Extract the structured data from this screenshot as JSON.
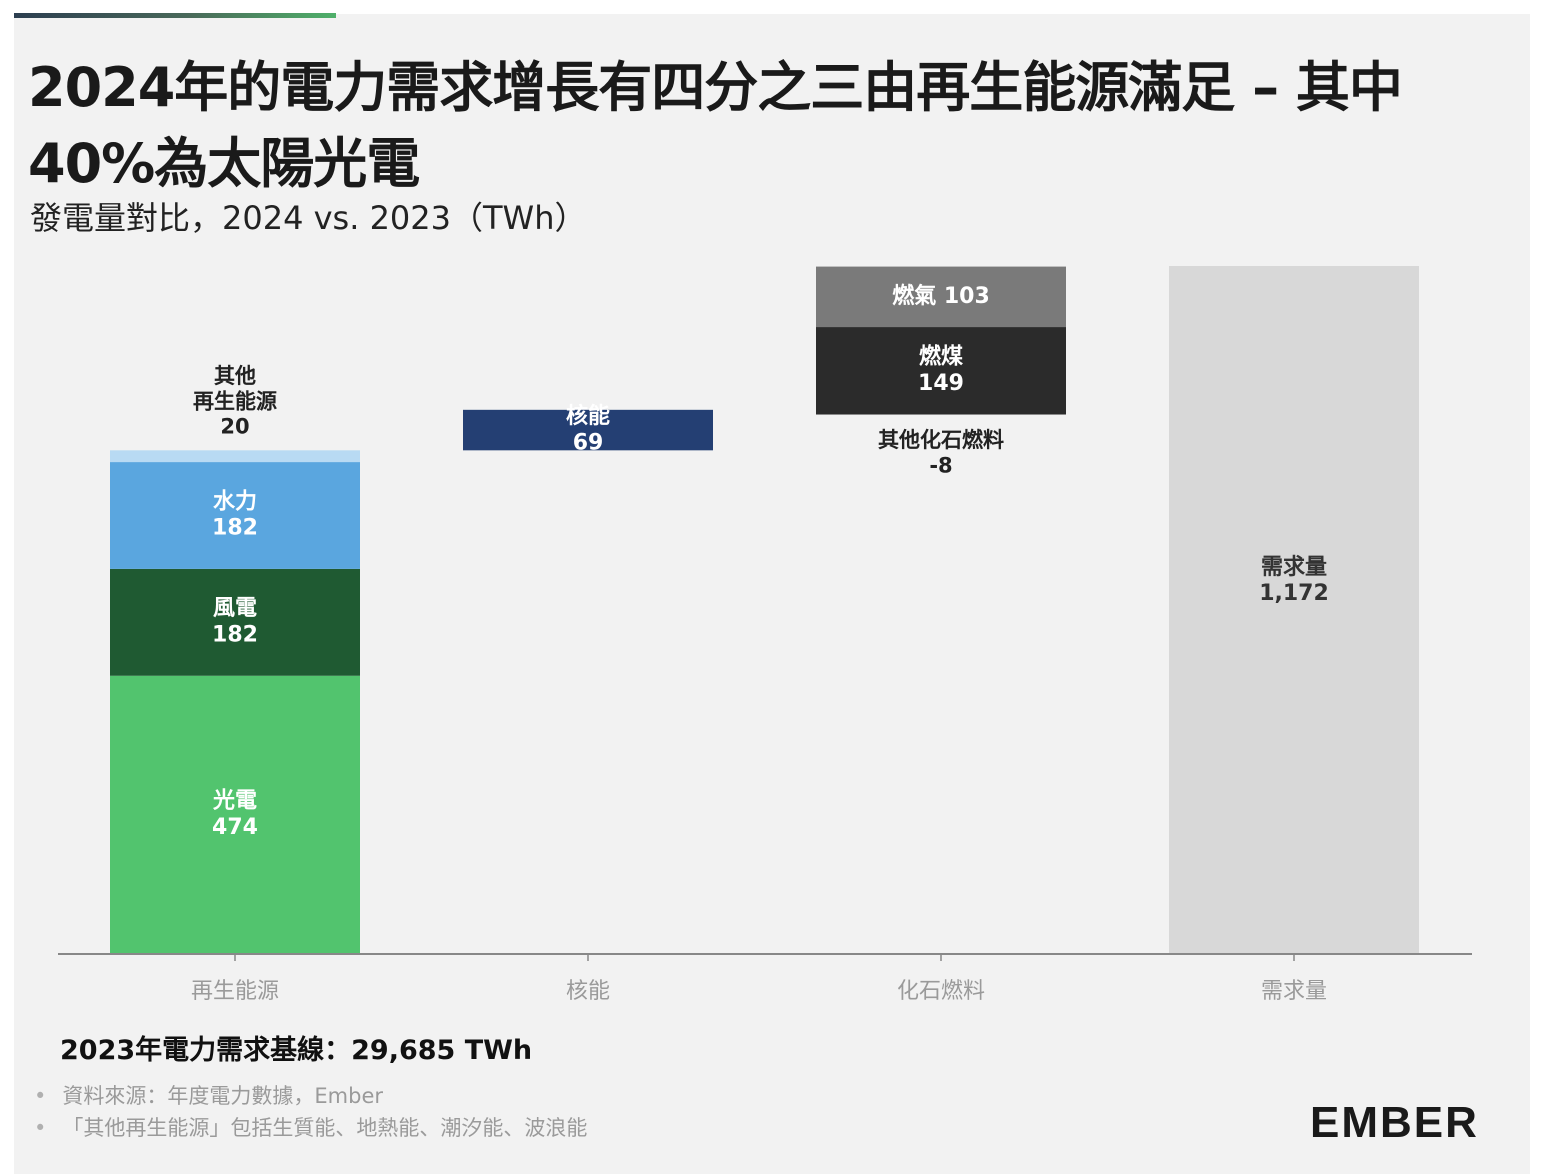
{
  "title": "2024年的電力需求增長有四分之三由再生能源滿足 – 其中40%為太陽光電",
  "subtitle": "發電量對比，2024 vs. 2023（TWh）",
  "baseline_note": "2023年電力需求基線：29,685 TWh",
  "footnotes": [
    "資料來源：年度電力數據，Ember",
    "「其他再生能源」包括生質能、地熱能、潮汐能、波浪能"
  ],
  "logo": "EMBER",
  "colors": {
    "solar": "#52c46e",
    "wind": "#1f5a32",
    "hydro": "#5aa6df",
    "other_renewables": "#b8daf3",
    "nuclear": "#243f73",
    "gas": "#7a7a7a",
    "coal": "#2b2b2b",
    "demand": "#d8d8d8",
    "axis": "#888888"
  },
  "chart_data": {
    "type": "bar",
    "subtype": "waterfall-stacked",
    "unit": "TWh",
    "categories": [
      "再生能源",
      "核能",
      "化石燃料",
      "需求量"
    ],
    "ylim": [
      0,
      1172
    ],
    "grid": false,
    "legend": "none",
    "segments": [
      {
        "category": "再生能源",
        "name": "光電",
        "value": 474,
        "color_key": "solar",
        "label": [
          "光電",
          "474"
        ]
      },
      {
        "category": "再生能源",
        "name": "風電",
        "value": 182,
        "color_key": "wind",
        "label": [
          "風電",
          "182"
        ]
      },
      {
        "category": "再生能源",
        "name": "水力",
        "value": 182,
        "color_key": "hydro",
        "label": [
          "水力",
          "182"
        ]
      },
      {
        "category": "再生能源",
        "name": "其他再生能源",
        "value": 20,
        "color_key": "other_renewables",
        "label": [
          "其他",
          "再生能源",
          "20"
        ]
      },
      {
        "category": "核能",
        "name": "核能",
        "value": 69,
        "color_key": "nuclear",
        "label": [
          "核能",
          "69"
        ]
      },
      {
        "category": "化石燃料",
        "name": "其他化石燃料",
        "value": -8,
        "color_key": "",
        "label": [
          "其他化石燃料",
          "-8"
        ]
      },
      {
        "category": "化石燃料",
        "name": "燃煤",
        "value": 149,
        "color_key": "coal",
        "label": [
          "燃煤",
          "149"
        ]
      },
      {
        "category": "化石燃料",
        "name": "燃氣",
        "value": 103,
        "color_key": "gas",
        "label": [
          "燃氣 103"
        ]
      },
      {
        "category": "需求量",
        "name": "需求量",
        "value": 1172,
        "color_key": "demand",
        "label": [
          "需求量",
          "1,172"
        ]
      }
    ]
  }
}
